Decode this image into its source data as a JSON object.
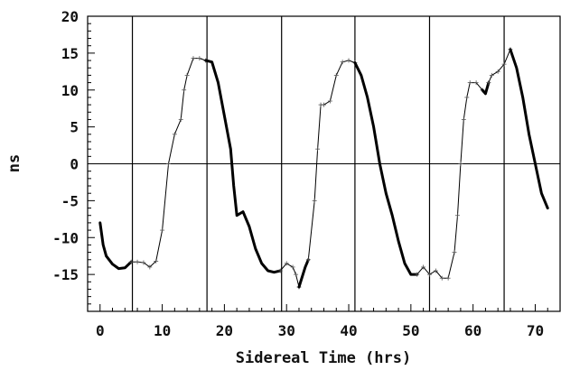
{
  "chart_data": {
    "type": "line",
    "xlabel": "Sidereal Time (hrs)",
    "ylabel": "ns",
    "xlim": [
      -2,
      74
    ],
    "ylim": [
      -20,
      20
    ],
    "x_ticks": [
      0,
      10,
      20,
      30,
      40,
      50,
      60,
      70
    ],
    "y_ticks": [
      -15,
      -10,
      -5,
      0,
      5,
      10,
      15,
      20
    ],
    "x_tick_labels": [
      "0",
      "10",
      "20",
      "30",
      "40",
      "50",
      "60",
      "70"
    ],
    "y_tick_labels": [
      "-15",
      "-10",
      "-5",
      "0",
      "5",
      "10",
      "15",
      "20"
    ],
    "vertical_lines": [
      5.2,
      17.2,
      29.2,
      41.0,
      53.0,
      65.0
    ],
    "horizontal_lines": [
      0
    ],
    "colors": {
      "line": "#000000",
      "axes": "#000000",
      "background": "#ffffff"
    },
    "series": [
      {
        "style": "thick",
        "points": [
          [
            0,
            -8
          ],
          [
            0.5,
            -11
          ],
          [
            1,
            -12.5
          ],
          [
            2,
            -13.6
          ],
          [
            3,
            -14.2
          ],
          [
            4,
            -14.1
          ],
          [
            5,
            -13.3
          ]
        ]
      },
      {
        "style": "thin",
        "points": [
          [
            5,
            -13.3
          ],
          [
            6,
            -13.3
          ],
          [
            7,
            -13.4
          ],
          [
            8,
            -14
          ],
          [
            9,
            -13.2
          ],
          [
            10,
            -9
          ],
          [
            11,
            0
          ],
          [
            12,
            4
          ],
          [
            13,
            6
          ],
          [
            13.5,
            10
          ],
          [
            14,
            12
          ],
          [
            15,
            14.3
          ],
          [
            16,
            14.3
          ],
          [
            17,
            14
          ]
        ]
      },
      {
        "style": "thick",
        "points": [
          [
            17,
            14
          ],
          [
            18,
            13.8
          ],
          [
            19,
            11
          ],
          [
            20,
            6.5
          ],
          [
            21,
            2
          ],
          [
            21.5,
            -3
          ],
          [
            22,
            -7
          ],
          [
            23,
            -6.5
          ],
          [
            24,
            -8.5
          ],
          [
            25,
            -11.5
          ],
          [
            26,
            -13.5
          ],
          [
            27,
            -14.5
          ],
          [
            28,
            -14.7
          ],
          [
            29,
            -14.5
          ]
        ]
      },
      {
        "style": "thin",
        "points": [
          [
            29,
            -14.5
          ],
          [
            30,
            -13.5
          ],
          [
            31,
            -14
          ],
          [
            31.5,
            -15
          ],
          [
            32,
            -16.7
          ]
        ]
      },
      {
        "style": "thick",
        "points": [
          [
            32,
            -16.7
          ],
          [
            33,
            -14
          ],
          [
            33.5,
            -13
          ]
        ]
      },
      {
        "style": "thin",
        "points": [
          [
            33.5,
            -13
          ],
          [
            34.5,
            -5
          ],
          [
            35,
            2
          ],
          [
            35.5,
            8
          ],
          [
            36,
            8
          ],
          [
            37,
            8.5
          ],
          [
            38,
            12
          ],
          [
            39,
            13.8
          ],
          [
            40,
            14
          ],
          [
            41,
            13.7
          ]
        ]
      },
      {
        "style": "thick",
        "points": [
          [
            41,
            13.7
          ],
          [
            42,
            12
          ],
          [
            43,
            9
          ],
          [
            44,
            5
          ],
          [
            45,
            0
          ],
          [
            46,
            -4
          ],
          [
            47,
            -7
          ],
          [
            48,
            -10.5
          ],
          [
            49,
            -13.5
          ],
          [
            50,
            -15
          ],
          [
            51,
            -15
          ]
        ]
      },
      {
        "style": "thin",
        "points": [
          [
            51,
            -15
          ],
          [
            52,
            -14
          ],
          [
            53,
            -15
          ],
          [
            54,
            -14.5
          ],
          [
            55,
            -15.5
          ],
          [
            56,
            -15.5
          ],
          [
            57,
            -12
          ],
          [
            57.5,
            -7
          ],
          [
            58,
            0
          ],
          [
            58.5,
            6
          ],
          [
            59,
            9
          ],
          [
            59.5,
            11
          ],
          [
            60.5,
            11
          ],
          [
            61.5,
            10
          ]
        ]
      },
      {
        "style": "thick",
        "points": [
          [
            61.5,
            10
          ],
          [
            62,
            9.5
          ],
          [
            62.5,
            11
          ]
        ]
      },
      {
        "style": "thin",
        "points": [
          [
            62.5,
            11
          ],
          [
            63,
            12
          ],
          [
            64,
            12.5
          ],
          [
            65,
            13.5
          ],
          [
            66,
            15.5
          ]
        ]
      },
      {
        "style": "thick",
        "points": [
          [
            66,
            15.5
          ],
          [
            67,
            13
          ],
          [
            68,
            9
          ],
          [
            69,
            4
          ],
          [
            70,
            0
          ],
          [
            71,
            -4
          ],
          [
            72,
            -6
          ]
        ]
      }
    ]
  }
}
